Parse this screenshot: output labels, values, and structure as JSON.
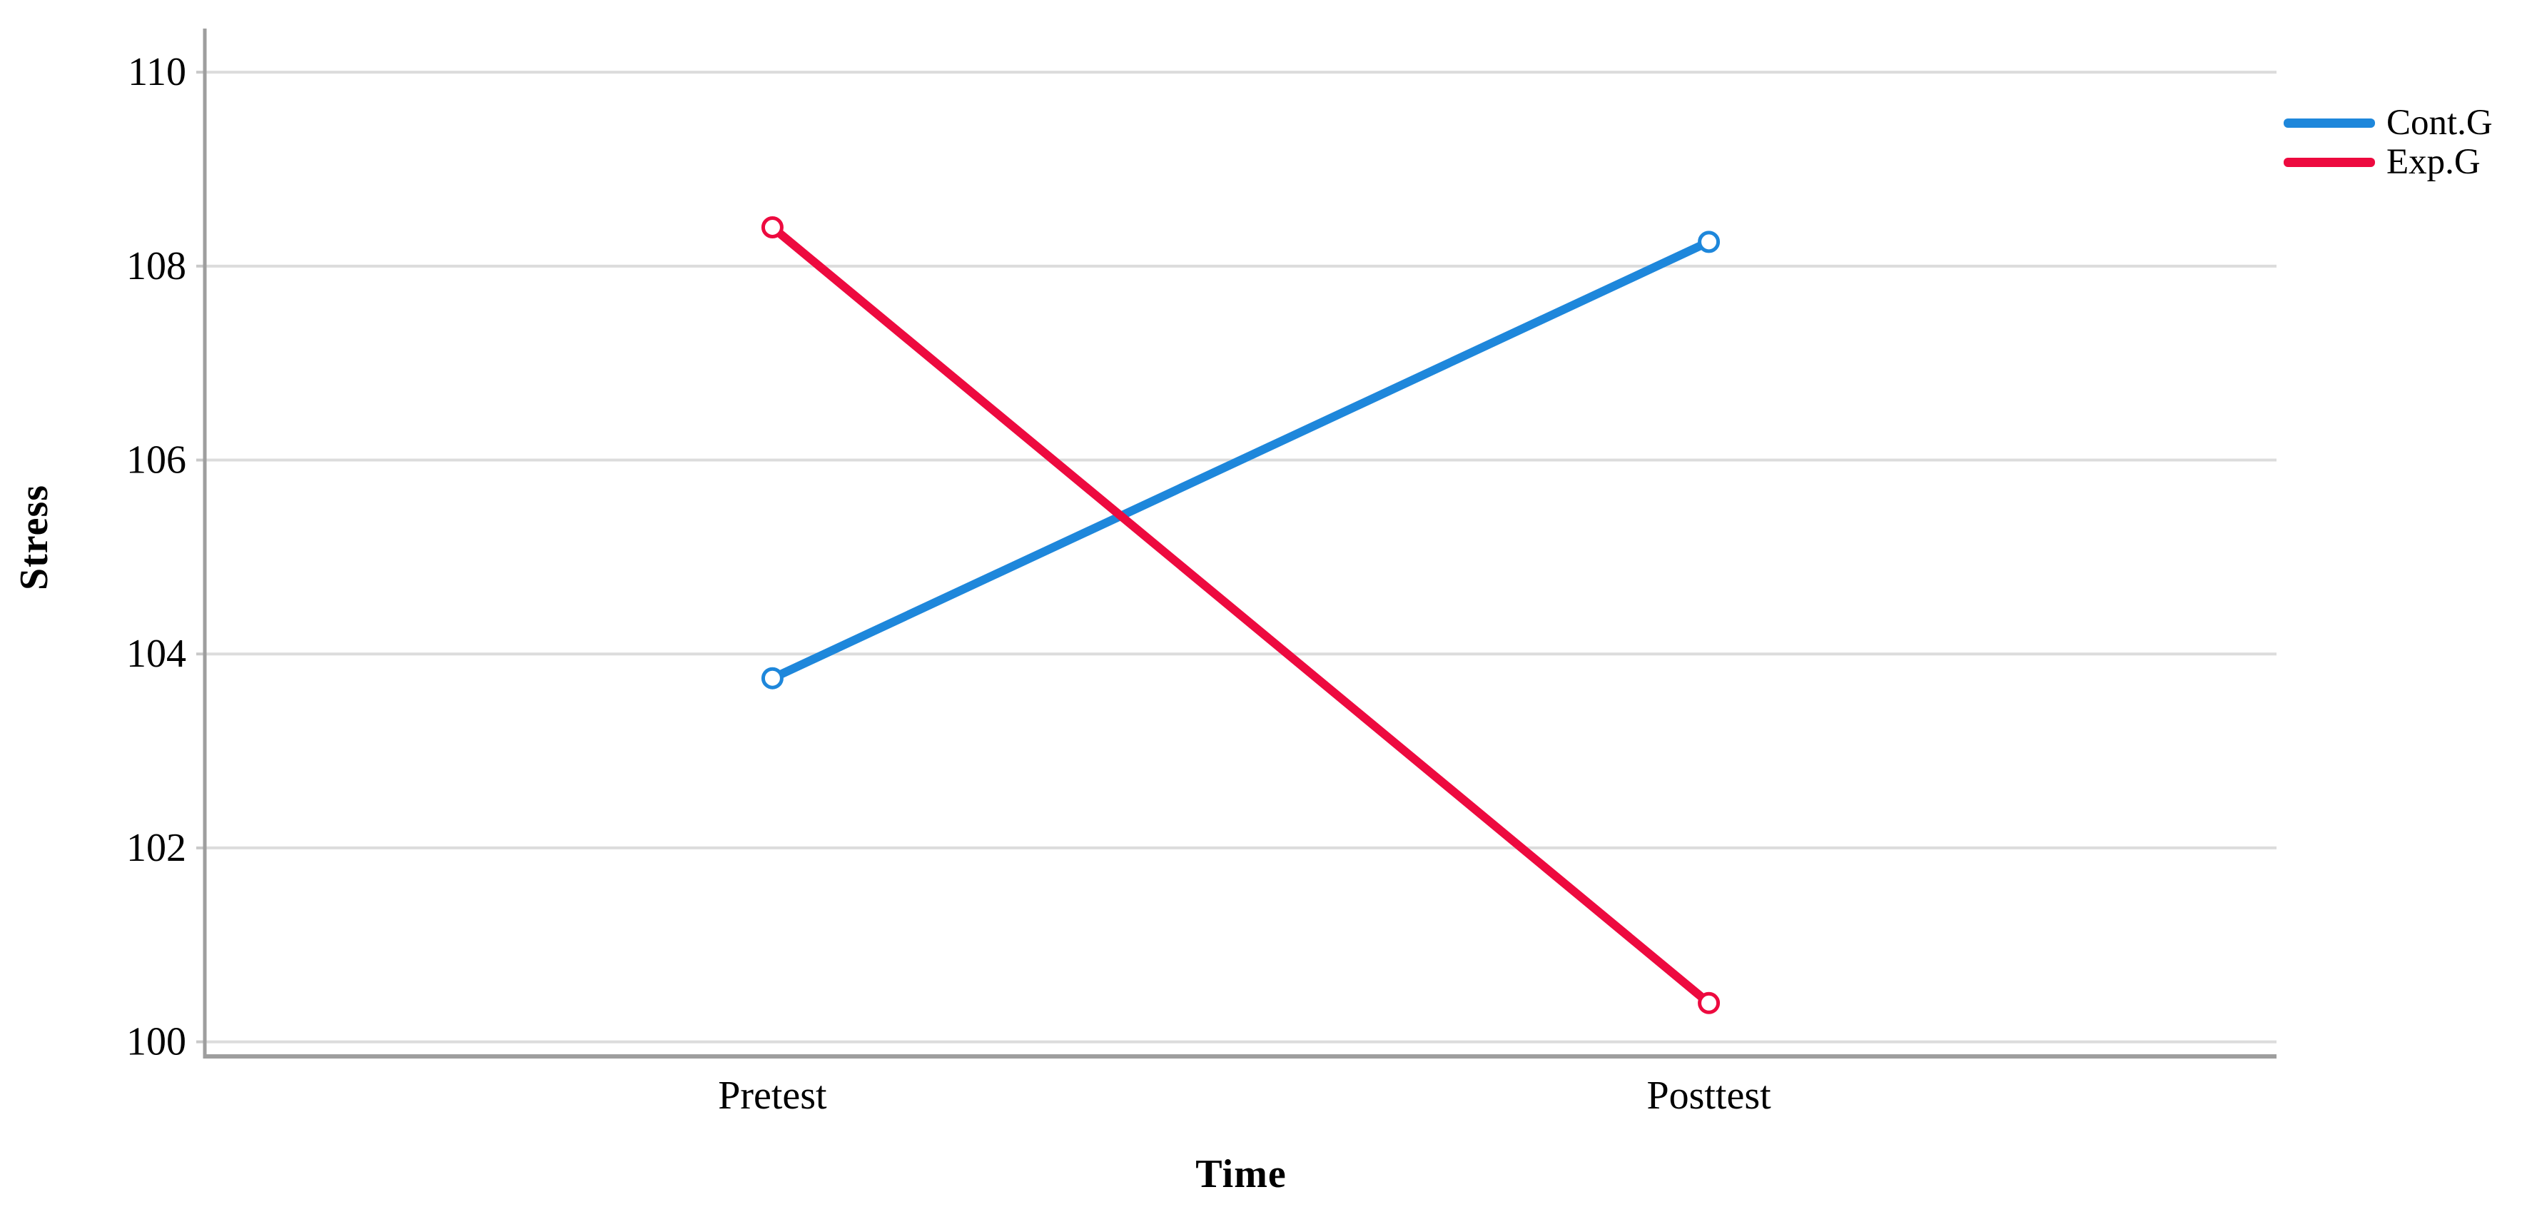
{
  "chart_data": {
    "type": "line",
    "title": "",
    "xlabel": "Time",
    "ylabel": "Stress",
    "categories": [
      "Pretest",
      "Posttest"
    ],
    "series": [
      {
        "name": "Cont.G",
        "values": [
          103.75,
          108.25
        ],
        "color": "#1E87DB"
      },
      {
        "name": "Exp.G",
        "values": [
          108.4,
          100.4
        ],
        "color": "#ED0A3F"
      }
    ],
    "yticks": [
      110,
      108,
      106,
      104,
      102,
      100
    ],
    "ylim": [
      99.85,
      110.45
    ],
    "grid": "horizontal-only",
    "legend_position": "top-right",
    "marker": "open-circle"
  },
  "style_colors": {
    "gridline": "#DCDCDC",
    "tick_stub": "#C9C9C9",
    "axis": "#9E9E9E",
    "background": "#FFFFFF",
    "text": "#000000"
  }
}
